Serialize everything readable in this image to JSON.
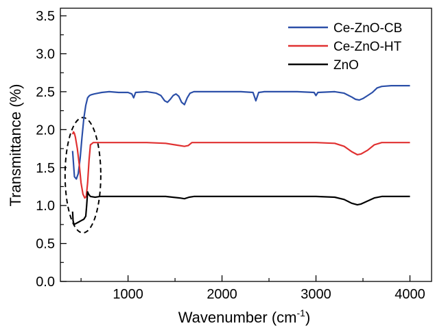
{
  "chart_data": {
    "type": "line",
    "title": "",
    "xlabel": "Wavenumber (cm",
    "xlabel_sup": "-1",
    "xlabel_suffix": ")",
    "ylabel": "Transmittance (%)",
    "xlim": [
      280,
      4230
    ],
    "ylim": [
      0.0,
      3.6
    ],
    "xticks": [
      1000,
      2000,
      3000,
      4000
    ],
    "xtick_labels": [
      "1000",
      "2000",
      "3000",
      "4000"
    ],
    "yticks": [
      0.0,
      0.5,
      1.0,
      1.5,
      2.0,
      2.5,
      3.0,
      3.5
    ],
    "ytick_labels": [
      "0.0",
      "0.5",
      "1.0",
      "1.5",
      "2.0",
      "2.5",
      "3.0",
      "3.5"
    ],
    "grid": false,
    "legend": "top-right",
    "series": [
      {
        "name": "Ce-ZnO-CB",
        "color": "#2b4fa8",
        "x": [
          410,
          430,
          450,
          470,
          490,
          510,
          530,
          550,
          570,
          590,
          610,
          640,
          680,
          720,
          800,
          900,
          1000,
          1040,
          1060,
          1080,
          1200,
          1300,
          1350,
          1390,
          1420,
          1450,
          1480,
          1510,
          1540,
          1570,
          1600,
          1630,
          1660,
          1700,
          1800,
          2000,
          2200,
          2330,
          2360,
          2390,
          2450,
          2600,
          2800,
          2980,
          3000,
          3020,
          3200,
          3300,
          3380,
          3420,
          3460,
          3500,
          3550,
          3600,
          3650,
          3700,
          3800,
          3900,
          4000
        ],
        "y": [
          1.72,
          1.38,
          1.35,
          1.42,
          1.62,
          1.9,
          2.15,
          2.32,
          2.42,
          2.45,
          2.46,
          2.47,
          2.48,
          2.49,
          2.5,
          2.49,
          2.49,
          2.47,
          2.42,
          2.49,
          2.5,
          2.48,
          2.45,
          2.38,
          2.36,
          2.4,
          2.45,
          2.47,
          2.44,
          2.36,
          2.33,
          2.42,
          2.48,
          2.5,
          2.5,
          2.5,
          2.5,
          2.49,
          2.38,
          2.49,
          2.5,
          2.5,
          2.5,
          2.49,
          2.45,
          2.49,
          2.5,
          2.48,
          2.43,
          2.4,
          2.39,
          2.41,
          2.45,
          2.49,
          2.55,
          2.57,
          2.58,
          2.58,
          2.58
        ]
      },
      {
        "name": "Ce-ZnO-HT",
        "color": "#e03030",
        "x": [
          410,
          420,
          430,
          440,
          460,
          480,
          500,
          520,
          540,
          555,
          570,
          585,
          600,
          630,
          700,
          800,
          1000,
          1200,
          1400,
          1500,
          1600,
          1640,
          1680,
          1800,
          2000,
          2500,
          3000,
          3200,
          3300,
          3380,
          3440,
          3480,
          3550,
          3620,
          3700,
          3800,
          4000
        ],
        "y": [
          1.94,
          1.97,
          1.95,
          1.9,
          1.75,
          1.55,
          1.3,
          1.15,
          1.1,
          1.12,
          1.3,
          1.6,
          1.8,
          1.83,
          1.83,
          1.83,
          1.83,
          1.83,
          1.82,
          1.8,
          1.78,
          1.79,
          1.83,
          1.83,
          1.83,
          1.83,
          1.83,
          1.82,
          1.78,
          1.71,
          1.67,
          1.68,
          1.73,
          1.8,
          1.83,
          1.83,
          1.83
        ]
      },
      {
        "name": "ZnO",
        "color": "#000000",
        "x": [
          410,
          415,
          425,
          440,
          470,
          500,
          530,
          550,
          560,
          570,
          580,
          600,
          650,
          700,
          800,
          1000,
          1200,
          1400,
          1550,
          1600,
          1650,
          1700,
          2000,
          2500,
          3000,
          3200,
          3300,
          3380,
          3440,
          3480,
          3550,
          3620,
          3700,
          3800,
          4000
        ],
        "y": [
          0.92,
          0.8,
          0.75,
          0.76,
          0.78,
          0.8,
          0.82,
          0.86,
          1.0,
          1.18,
          1.15,
          1.12,
          1.11,
          1.12,
          1.12,
          1.12,
          1.12,
          1.12,
          1.1,
          1.09,
          1.11,
          1.12,
          1.12,
          1.12,
          1.12,
          1.11,
          1.08,
          1.03,
          1.01,
          1.02,
          1.06,
          1.1,
          1.12,
          1.12,
          1.12
        ]
      }
    ],
    "annotations": [
      {
        "shape": "dashed-ellipse",
        "x_center": 520,
        "y_center": 1.4,
        "x_radius": 190,
        "y_radius": 0.76
      }
    ]
  }
}
